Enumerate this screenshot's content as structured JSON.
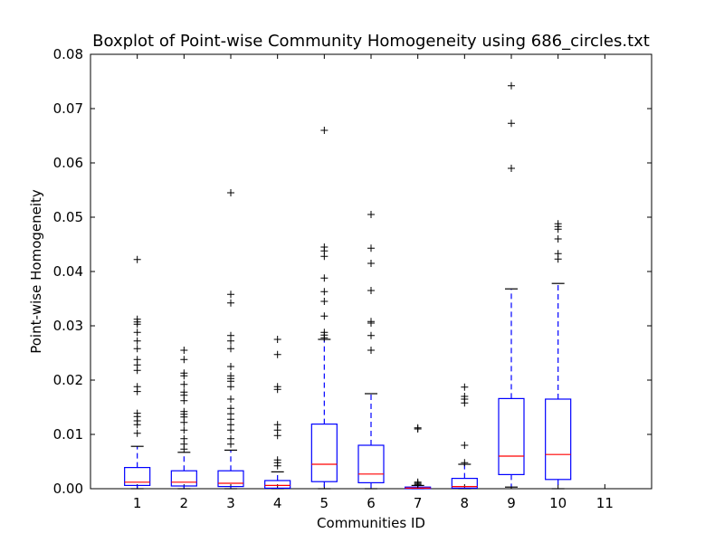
{
  "chart_data": {
    "type": "boxplot",
    "title": "Boxplot of Point-wise Community Homogeneity using 686_circles.txt",
    "xlabel": "Communities ID",
    "ylabel": "Point-wise Homogeneity",
    "categories": [
      "1",
      "2",
      "3",
      "4",
      "5",
      "6",
      "7",
      "8",
      "9",
      "10",
      "11"
    ],
    "ylim": [
      0,
      0.08
    ],
    "yticks": [
      "0.00",
      "0.01",
      "0.02",
      "0.03",
      "0.04",
      "0.05",
      "0.06",
      "0.07",
      "0.08"
    ],
    "grid": false,
    "colors": {
      "box": "#0000ff",
      "median": "#ff0000",
      "outlier": "#000000",
      "axis": "#000000"
    },
    "boxes": [
      {
        "id": "1",
        "whisker_low": 0.0,
        "q1": 0.0006,
        "median": 0.0012,
        "q3": 0.0039,
        "whisker_high": 0.0078,
        "outliers": [
          0.0102,
          0.0118,
          0.0125,
          0.0133,
          0.0139,
          0.0179,
          0.0188,
          0.0218,
          0.0228,
          0.0238,
          0.0258,
          0.0272,
          0.0288,
          0.0303,
          0.0307,
          0.0312,
          0.0422
        ]
      },
      {
        "id": "2",
        "whisker_low": 0.0,
        "q1": 0.0005,
        "median": 0.0012,
        "q3": 0.0033,
        "whisker_high": 0.0067,
        "outliers": [
          0.0073,
          0.0082,
          0.0092,
          0.0108,
          0.0122,
          0.0132,
          0.0137,
          0.0142,
          0.0162,
          0.0172,
          0.0178,
          0.0192,
          0.0208,
          0.0213,
          0.0238,
          0.0255
        ]
      },
      {
        "id": "3",
        "whisker_low": 0.0,
        "q1": 0.0004,
        "median": 0.001,
        "q3": 0.0033,
        "whisker_high": 0.0071,
        "outliers": [
          0.0082,
          0.0092,
          0.0108,
          0.0118,
          0.0128,
          0.0138,
          0.0148,
          0.0165,
          0.0188,
          0.0198,
          0.0203,
          0.0208,
          0.0225,
          0.0258,
          0.0272,
          0.0282,
          0.0342,
          0.0358,
          0.0545
        ]
      },
      {
        "id": "4",
        "whisker_low": 0.0,
        "q1": 0.0001,
        "median": 0.0006,
        "q3": 0.0015,
        "whisker_high": 0.0031,
        "outliers": [
          0.0042,
          0.0048,
          0.0053,
          0.0098,
          0.0108,
          0.0118,
          0.0183,
          0.0188,
          0.0247,
          0.0275
        ]
      },
      {
        "id": "5",
        "whisker_low": 0.0,
        "q1": 0.0013,
        "median": 0.0045,
        "q3": 0.0119,
        "whisker_high": 0.0275,
        "outliers": [
          0.0278,
          0.0283,
          0.0288,
          0.0318,
          0.0345,
          0.0363,
          0.0388,
          0.0428,
          0.0438,
          0.0445,
          0.066
        ]
      },
      {
        "id": "6",
        "whisker_low": 0.0,
        "q1": 0.0011,
        "median": 0.0027,
        "q3": 0.008,
        "whisker_high": 0.0175,
        "outliers": [
          0.0255,
          0.0282,
          0.0305,
          0.0308,
          0.0365,
          0.0415,
          0.0443,
          0.0505
        ]
      },
      {
        "id": "7",
        "whisker_low": 0.0,
        "q1": 0.0,
        "median": 0.0001,
        "q3": 0.0003,
        "whisker_high": 0.0006,
        "outliers": [
          0.0008,
          0.001,
          0.0012,
          0.011,
          0.0112
        ]
      },
      {
        "id": "8",
        "whisker_low": 0.0,
        "q1": 0.0001,
        "median": 0.0004,
        "q3": 0.0019,
        "whisker_high": 0.0045,
        "outliers": [
          0.0048,
          0.008,
          0.0158,
          0.0165,
          0.017,
          0.0187
        ]
      },
      {
        "id": "9",
        "whisker_low": 0.0003,
        "q1": 0.0026,
        "median": 0.006,
        "q3": 0.0166,
        "whisker_high": 0.0368,
        "outliers": [
          0.059,
          0.0673,
          0.0742
        ]
      },
      {
        "id": "10",
        "whisker_low": 0.0,
        "q1": 0.0017,
        "median": 0.0063,
        "q3": 0.0165,
        "whisker_high": 0.0378,
        "outliers": [
          0.0423,
          0.0433,
          0.046,
          0.0478,
          0.0483,
          0.0488
        ]
      }
    ]
  }
}
